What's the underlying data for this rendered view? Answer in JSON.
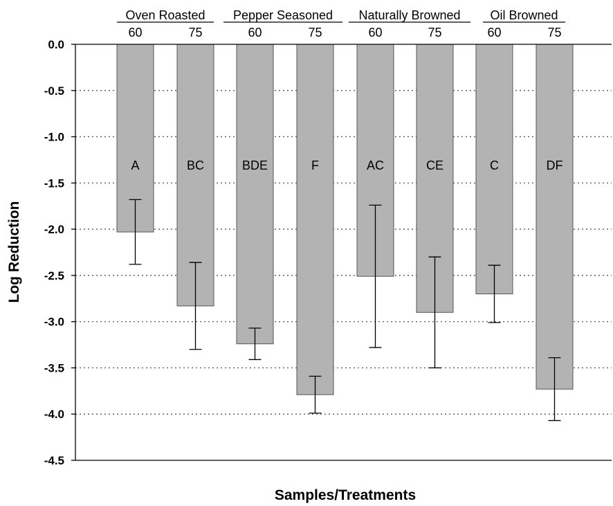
{
  "chart_data": {
    "type": "bar",
    "xlabel": "Samples/Treatments",
    "ylabel": "Log Reduction",
    "ylim": [
      -4.5,
      0.0
    ],
    "yticks": [
      "0.0",
      "-0.5",
      "-1.0",
      "-1.5",
      "-2.0",
      "-2.5",
      "-3.0",
      "-3.5",
      "-4.0",
      "-4.5"
    ],
    "ytick_values": [
      0.0,
      -0.5,
      -1.0,
      -1.5,
      -2.0,
      -2.5,
      -3.0,
      -3.5,
      -4.0,
      -4.5
    ],
    "grid": "horizontal dotted",
    "groups": [
      "Oven Roasted",
      "Pepper Seasoned",
      "Naturally Browned",
      "Oil Browned"
    ],
    "categories": [
      "60",
      "75",
      "60",
      "75",
      "60",
      "75",
      "60",
      "75"
    ],
    "values": [
      -2.03,
      -2.83,
      -3.24,
      -3.79,
      -2.51,
      -2.9,
      -2.7,
      -3.73
    ],
    "errors": [
      0.35,
      0.47,
      0.17,
      0.2,
      0.77,
      0.6,
      0.31,
      0.34
    ],
    "significance_letters": [
      "A",
      "BC",
      "BDE",
      "F",
      "AC",
      "CE",
      "C",
      "DF"
    ],
    "bar_color": "#b3b3b3"
  }
}
